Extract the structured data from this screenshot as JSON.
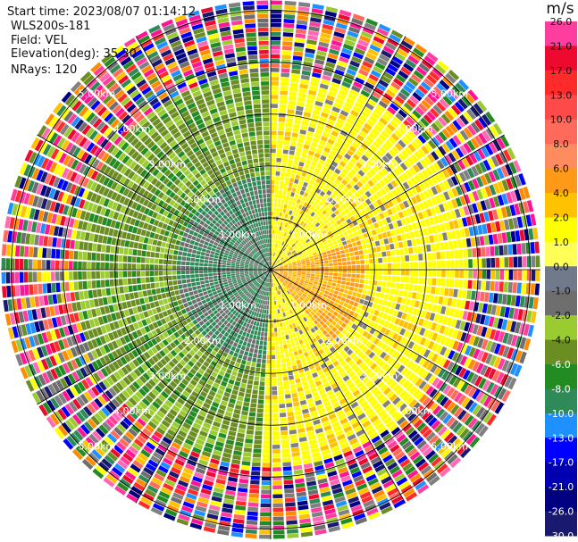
{
  "info": {
    "start_time": "Start time: 2023/08/07 01:14:12",
    "instrument": "WLS200s-181",
    "field": "Field: VEL",
    "elevation": "Elevation(deg): 35.30",
    "nrays": "NRays: 120"
  },
  "chart_data": {
    "type": "polar-ppi",
    "field": "VEL",
    "units": "m/s",
    "nrays": 120,
    "range_rings_km": [
      1.0,
      2.0,
      3.0,
      4.0,
      5.0
    ],
    "range_ring_labels": [
      "1.00km",
      "2.00km",
      "3.00km",
      "4.00km",
      "5.00km"
    ],
    "max_range_km": 5.0,
    "colorbar": {
      "title": "m/s",
      "ticks": [
        "26.0",
        "21.0",
        "17.0",
        "13.0",
        "10.0",
        "8.0",
        "6.0",
        "4.0",
        "2.0",
        "1.0",
        "0.0",
        "-1.0",
        "-2.0",
        "-4.0",
        "-6.0",
        "-8.0",
        "-10.0",
        "-13.0",
        "-17.0",
        "-21.0",
        "-26.0",
        "-30.0"
      ],
      "colors": [
        "#ff3d9e",
        "#ee0a2e",
        "#ff2a2a",
        "#ff4a4a",
        "#ff6a5a",
        "#ff8c5e",
        "#ff9a18",
        "#ffc200",
        "#ffff00",
        "#ffff55",
        "#707a8a",
        "#6e6e6e",
        "#9acc32",
        "#6b8e23",
        "#228b22",
        "#2e8b57",
        "#1e90ff",
        "#0000ff",
        "#0000b0",
        "#000080",
        "#191970"
      ]
    }
  }
}
